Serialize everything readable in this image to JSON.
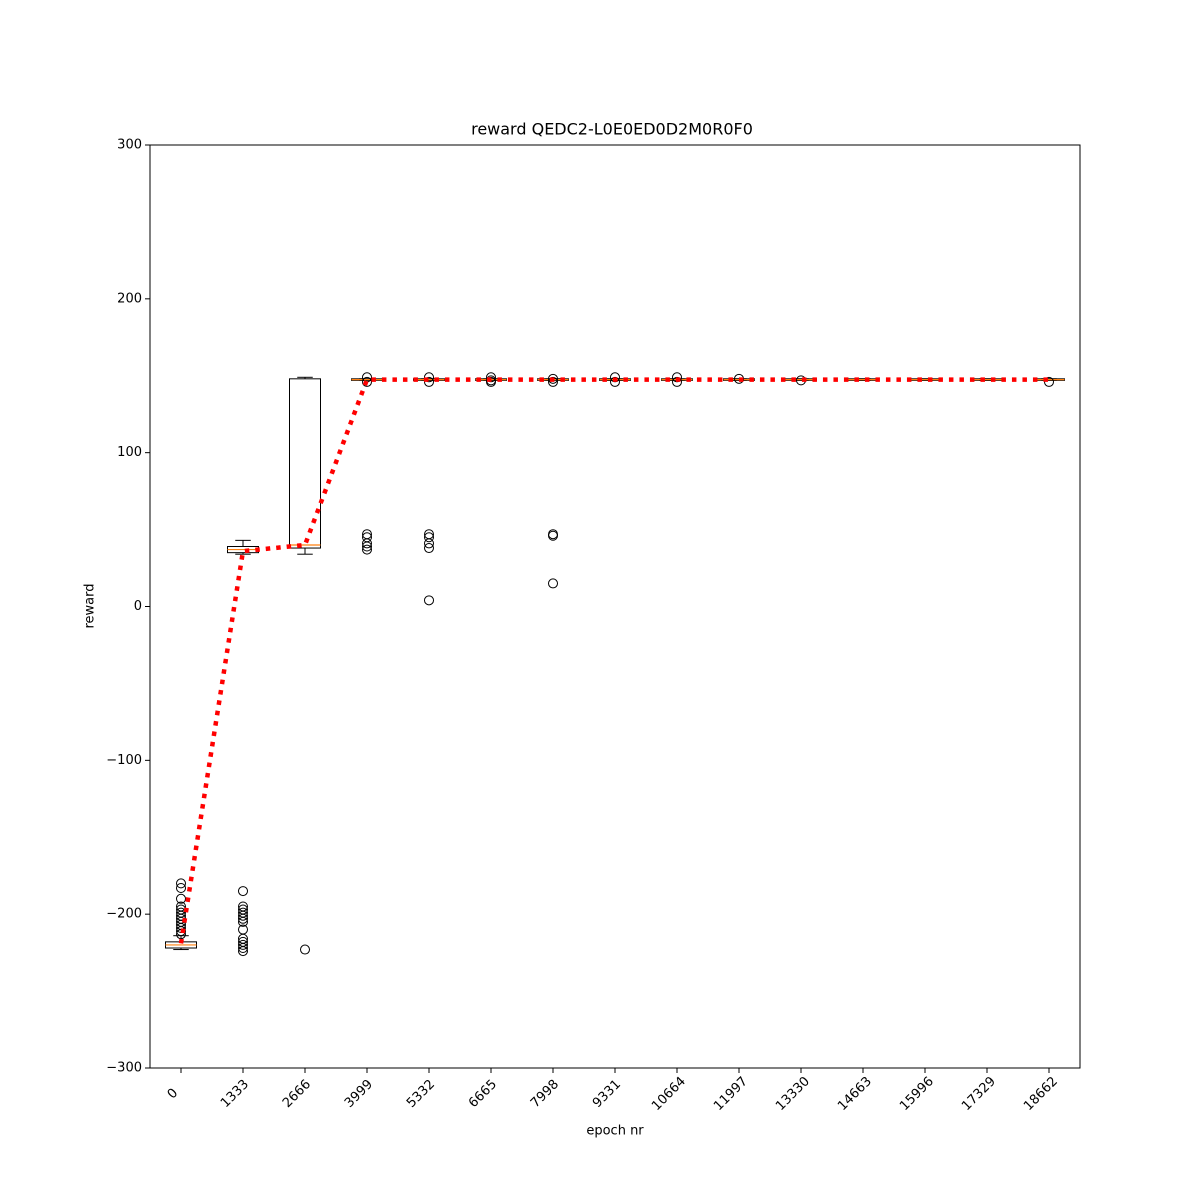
{
  "chart_data": {
    "type": "box",
    "title": "reward QEDC2-L0E0ED0D2M0R0F0",
    "x_label": "epoch nr",
    "y_label": "reward",
    "categories": [
      "0",
      "1333",
      "2666",
      "3999",
      "5332",
      "6665",
      "7998",
      "9331",
      "10664",
      "11997",
      "13330",
      "14663",
      "15996",
      "17329",
      "18662"
    ],
    "whisker_low": [
      -223,
      34,
      34,
      147,
      147,
      147,
      147,
      147,
      147,
      147,
      147,
      147,
      147,
      147,
      147
    ],
    "q1": [
      -222,
      35,
      38,
      147,
      147,
      147,
      147,
      147,
      147,
      147,
      147,
      147,
      147,
      147,
      147
    ],
    "median": [
      -220,
      37,
      40,
      147.5,
      147.5,
      147.5,
      147.5,
      147.5,
      147.5,
      147.5,
      147.5,
      147.5,
      147.5,
      147.5,
      147.5
    ],
    "q3": [
      -218,
      39,
      148,
      148,
      148,
      148,
      148,
      148,
      148,
      148,
      148,
      148,
      148,
      148,
      148
    ],
    "whisker_high": [
      -214,
      43,
      149,
      148,
      148,
      148,
      148,
      148,
      148,
      148,
      148,
      148,
      148,
      148,
      148
    ],
    "outliers": [
      [
        -180,
        -183,
        -190,
        -195,
        -197,
        -199,
        -201,
        -203,
        -205,
        -207,
        -209,
        -211,
        -213
      ],
      [
        -185,
        -195,
        -197,
        -199,
        -201,
        -203,
        -205,
        -210,
        -216,
        -218,
        -220,
        -222,
        -224
      ],
      [
        -223
      ],
      [
        37,
        39,
        41,
        45,
        47,
        146,
        149
      ],
      [
        4,
        38,
        41,
        45,
        47,
        146,
        149
      ],
      [
        146,
        147,
        149
      ],
      [
        15,
        46,
        47,
        146,
        148
      ],
      [
        146,
        149
      ],
      [
        146,
        149
      ],
      [
        148
      ],
      [
        147
      ],
      [],
      [],
      [],
      [
        146
      ]
    ],
    "means": [
      -219,
      36,
      40,
      147.5,
      147.5,
      147.5,
      147.5,
      147.5,
      147.5,
      147.5,
      147.5,
      147.5,
      147.5,
      147.5,
      147.5
    ],
    "box_color": "#000000",
    "median_color": "#ff7f0e",
    "mean_color": "#ff0000",
    "ylim": [
      -300,
      300
    ],
    "yticks": [
      {
        "value": -300,
        "label": "−300"
      },
      {
        "value": -200,
        "label": "−200"
      },
      {
        "value": -100,
        "label": "−100"
      },
      0,
      100,
      200,
      300
    ]
  }
}
